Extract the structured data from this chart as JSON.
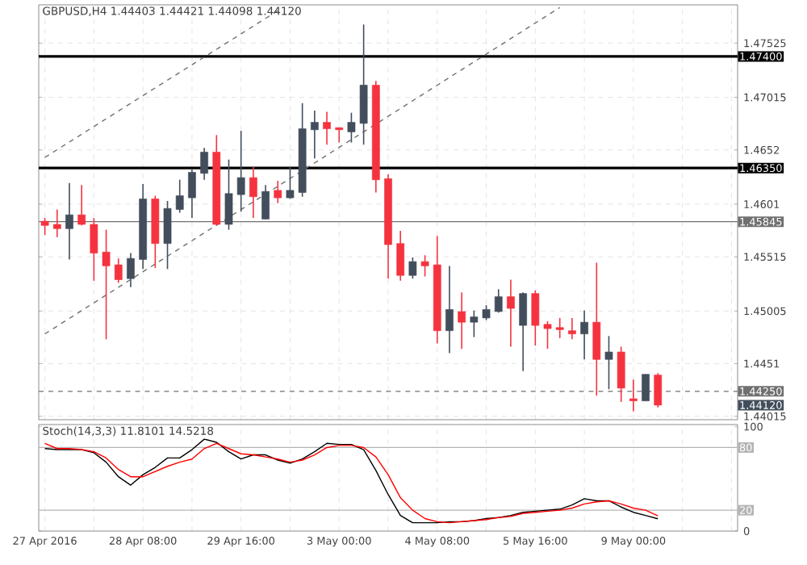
{
  "chart_data": [
    {
      "type": "candlestick",
      "title": "GBPUSD,H4 1.44403 1.44421 1.44098 1.44120",
      "categories": [
        null,
        null,
        null,
        null,
        null,
        null,
        null,
        null,
        null,
        null,
        null,
        null,
        null,
        null,
        null,
        null,
        null,
        null,
        null,
        null,
        null,
        null,
        null,
        null,
        null,
        null,
        null,
        null,
        null,
        null,
        null,
        null,
        null,
        null,
        null,
        null,
        null,
        null,
        null,
        null,
        null,
        null,
        null,
        null,
        null,
        null,
        null,
        null,
        null,
        null,
        null,
        null,
        null,
        null,
        null,
        null,
        null
      ],
      "ohlc": [
        [
          1.4585,
          1.4588,
          1.4572,
          1.4581
        ],
        [
          1.4582,
          1.4596,
          1.457,
          1.4578
        ],
        [
          1.4578,
          1.4621,
          1.4549,
          1.4591
        ],
        [
          1.4591,
          1.4619,
          1.4581,
          1.4582
        ],
        [
          1.4582,
          1.4588,
          1.4529,
          1.4555
        ],
        [
          1.4556,
          1.4577,
          1.4474,
          1.4543
        ],
        [
          1.4544,
          1.455,
          1.4527,
          1.453
        ],
        [
          1.4531,
          1.4555,
          1.4523,
          1.455
        ],
        [
          1.4549,
          1.462,
          1.454,
          1.4606
        ],
        [
          1.4606,
          1.4609,
          1.4541,
          1.4564
        ],
        [
          1.4564,
          1.4604,
          1.454,
          1.4597
        ],
        [
          1.4596,
          1.4624,
          1.4593,
          1.4609
        ],
        [
          1.4607,
          1.4634,
          1.4588,
          1.4631
        ],
        [
          1.463,
          1.4654,
          1.4624,
          1.465
        ],
        [
          1.465,
          1.4666,
          1.4581,
          1.4582
        ],
        [
          1.4582,
          1.4643,
          1.4577,
          1.4611
        ],
        [
          1.461,
          1.467,
          1.4594,
          1.4626
        ],
        [
          1.4626,
          1.4636,
          1.4588,
          1.4608
        ],
        [
          1.4587,
          1.4619,
          1.4587,
          1.4613
        ],
        [
          1.4614,
          1.4623,
          1.4602,
          1.4607
        ],
        [
          1.4607,
          1.4636,
          1.4606,
          1.4614
        ],
        [
          1.4612,
          1.4696,
          1.4608,
          1.4672
        ],
        [
          1.4671,
          1.4689,
          1.4644,
          1.4678
        ],
        [
          1.4678,
          1.4688,
          1.4657,
          1.4672
        ],
        [
          1.4673,
          1.4673,
          1.4659,
          1.4671
        ],
        [
          1.4669,
          1.4687,
          1.4659,
          1.4678
        ],
        [
          1.4677,
          1.477,
          1.4657,
          1.4713
        ],
        [
          1.4713,
          1.4717,
          1.4612,
          1.4624
        ],
        [
          1.4625,
          1.4629,
          1.4531,
          1.4563
        ],
        [
          1.4564,
          1.4576,
          1.4529,
          1.4534
        ],
        [
          1.4534,
          1.4551,
          1.4531,
          1.4547
        ],
        [
          1.4547,
          1.4553,
          1.4533,
          1.4543
        ],
        [
          1.4544,
          1.4571,
          1.447,
          1.4482
        ],
        [
          1.4482,
          1.4543,
          1.4461,
          1.4502
        ],
        [
          1.45,
          1.4518,
          1.4465,
          1.449
        ],
        [
          1.449,
          1.4501,
          1.4476,
          1.4495
        ],
        [
          1.4494,
          1.4506,
          1.4492,
          1.4502
        ],
        [
          1.45,
          1.4521,
          1.4499,
          1.4514
        ],
        [
          1.4514,
          1.453,
          1.4467,
          1.4503
        ],
        [
          1.4487,
          1.4518,
          1.4444,
          1.4517
        ],
        [
          1.4517,
          1.452,
          1.4468,
          1.4487
        ],
        [
          1.4488,
          1.4491,
          1.4465,
          1.4484
        ],
        [
          1.4485,
          1.4494,
          1.4475,
          1.4483
        ],
        [
          1.4482,
          1.4494,
          1.4474,
          1.4479
        ],
        [
          1.4479,
          1.4501,
          1.4455,
          1.449
        ],
        [
          1.449,
          1.4546,
          1.4421,
          1.4455
        ],
        [
          1.4455,
          1.4477,
          1.4427,
          1.4462
        ],
        [
          1.4462,
          1.4467,
          1.4415,
          1.4428
        ],
        [
          1.4418,
          1.4436,
          1.4406,
          1.4416
        ],
        [
          1.4416,
          1.4441,
          1.4416,
          1.4441
        ],
        [
          1.44403,
          1.44421,
          1.44098,
          1.4412
        ],
        null,
        null,
        null,
        null,
        null,
        null
      ],
      "colors": [
        "#f5333f",
        "#f5333f",
        "#434e5c",
        "#f5333f",
        "#f5333f",
        "#f5333f",
        "#f5333f",
        "#434e5c",
        "#434e5c",
        "#f5333f",
        "#434e5c",
        "#434e5c",
        "#434e5c",
        "#434e5c",
        "#f5333f",
        "#434e5c",
        "#434e5c",
        "#f5333f",
        "#434e5c",
        "#f5333f",
        "#434e5c",
        "#434e5c",
        "#434e5c",
        "#f5333f",
        "#f5333f",
        "#434e5c",
        "#434e5c",
        "#f5333f",
        "#f5333f",
        "#f5333f",
        "#434e5c",
        "#f5333f",
        "#f5333f",
        "#434e5c",
        "#f5333f",
        "#434e5c",
        "#434e5c",
        "#434e5c",
        "#f5333f",
        "#434e5c",
        "#f5333f",
        "#f5333f",
        "#f5333f",
        "#f5333f",
        "#434e5c",
        "#f5333f",
        "#434e5c",
        "#f5333f",
        "#f5333f",
        "#434e5c",
        "#f5333f",
        null,
        null,
        null,
        null,
        null,
        null
      ],
      "series": [
        {
          "type": "line",
          "color": "#707070",
          "line_style": "dashed",
          "values": [
            1.4479,
            null,
            null,
            null,
            null,
            null,
            null,
            null,
            null,
            null,
            null,
            null,
            null,
            null,
            null,
            null,
            null,
            null,
            null,
            null,
            null,
            null,
            null,
            null,
            null,
            null,
            null,
            null,
            null,
            null,
            null,
            null,
            null,
            null,
            null,
            null,
            null,
            null,
            null,
            null,
            null,
            null,
            1.4786,
            null,
            null,
            null,
            null,
            null,
            null,
            null,
            null,
            null,
            null,
            null,
            null,
            null,
            null
          ]
        },
        {
          "type": "line",
          "color": "#707070",
          "line_style": "dashed",
          "values": [
            1.4645,
            null,
            null,
            null,
            null,
            null,
            null,
            null,
            null,
            null,
            null,
            null,
            null,
            null,
            null,
            null,
            null,
            null,
            null,
            1.4783,
            null,
            null,
            null,
            null,
            null,
            null,
            null,
            null,
            null,
            null,
            null,
            null,
            null,
            null,
            null,
            null,
            null,
            null,
            null,
            null,
            null,
            null,
            null,
            null,
            null,
            null,
            null,
            null,
            null,
            null,
            null,
            null,
            null,
            null,
            null,
            null,
            null
          ]
        }
      ],
      "ylim": [
        1.43983,
        1.47885
      ],
      "yticks": [
        1.47525,
        1.47015,
        1.4652,
        1.4601,
        1.45515,
        1.45005,
        1.4451,
        1.44015
      ],
      "ref_lines": [
        {
          "axis": "y",
          "value": 1.474,
          "label": "1.47400",
          "color": "#000000"
        },
        {
          "axis": "y",
          "value": 1.4635,
          "label": "1.46350",
          "color": "#000000"
        },
        {
          "axis": "y",
          "value": 1.45845,
          "label": "1.45845",
          "color": "#707070"
        },
        {
          "axis": "y",
          "value": 1.4425,
          "label": "1.44250",
          "color": "#707070",
          "line_style": "dashed"
        }
      ],
      "annotations": [
        "1.44120"
      ],
      "grid": true,
      "tick_labels": "y"
    },
    {
      "type": "line",
      "title": "Stoch(14,3,3) 11.8101 14.5218",
      "categories": [
        "27 Apr 2016",
        null,
        null,
        null,
        null,
        null,
        null,
        null,
        "28 Apr 08:00",
        null,
        null,
        null,
        null,
        null,
        null,
        null,
        "29 Apr 16:00",
        null,
        null,
        null,
        null,
        null,
        null,
        null,
        "3 May 00:00",
        null,
        null,
        null,
        null,
        null,
        null,
        null,
        "4 May 08:00",
        null,
        null,
        null,
        null,
        null,
        null,
        null,
        "5 May 16:00",
        null,
        null,
        null,
        null,
        null,
        null,
        null,
        "9 May 00:00",
        null,
        null,
        null,
        null,
        null,
        null,
        null,
        null
      ],
      "series": [
        {
          "color": "#000000",
          "values": [
            79,
            78,
            78,
            78,
            75,
            66,
            52,
            44,
            54,
            61,
            70,
            70,
            78,
            88,
            85,
            76,
            69,
            73,
            73,
            68,
            65,
            69,
            76,
            84,
            83,
            83,
            78,
            58,
            35,
            15,
            8,
            8,
            8,
            9,
            9,
            10,
            12,
            13,
            15,
            18,
            19,
            20,
            21,
            25,
            31,
            29,
            29,
            23,
            18,
            15,
            11.8101,
            null,
            null,
            null,
            null,
            null,
            null
          ]
        },
        {
          "color": "#ff0000",
          "values": [
            84,
            79,
            79,
            78,
            76,
            70,
            59,
            52,
            52,
            57,
            62,
            66,
            69,
            79,
            84,
            79,
            74,
            73,
            71,
            69,
            66,
            68,
            73,
            80,
            82,
            82,
            80,
            71,
            54,
            32,
            20,
            12,
            9,
            8,
            9,
            10,
            11,
            13,
            14,
            17,
            18,
            19,
            20,
            22,
            26,
            28,
            29,
            26,
            22,
            20,
            14.5218,
            null,
            null,
            null,
            null,
            null,
            null
          ]
        }
      ],
      "ylim": [
        0,
        102
      ],
      "yticks": [
        100,
        0
      ],
      "ref_lines": [
        {
          "axis": "y",
          "value": 80,
          "label": "80",
          "color": "#b4b4b4"
        },
        {
          "axis": "y",
          "value": 20,
          "label": "20",
          "color": "#b4b4b4"
        }
      ],
      "grid": "x",
      "marker": "none"
    }
  ]
}
